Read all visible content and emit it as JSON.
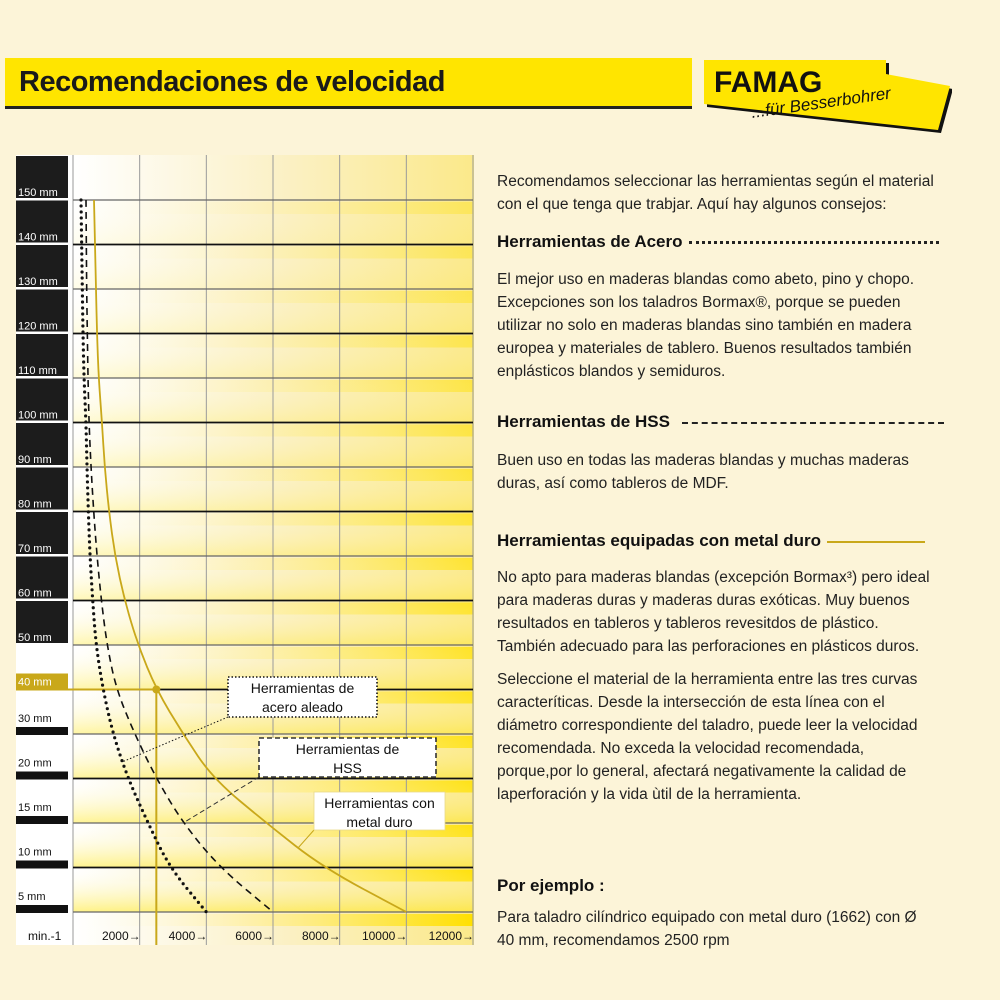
{
  "header": {
    "title": "Recomendaciones de velocidad"
  },
  "logo": {
    "brand": "FAMAG",
    "tagline": "...für Besserbohrer",
    "color": "#ffe500"
  },
  "intro": [
    "Recomendamos seleccionar las herramientas según el material",
    "con el que tenga que trabjar. Aquí hay algunos consejos:"
  ],
  "sections": [
    {
      "title": "Herramientas de Acero",
      "leader": "dotted",
      "lines": [
        "El mejor uso en maderas blandas como abeto, pino y chopo.",
        "Excepciones son los taladros Bormax®, porque se pueden",
        "utilizar no solo en maderas blandas sino también en madera",
        "europea y materiales de tablero. Buenos resultados también",
        "enplásticos blandos y semiduros."
      ]
    },
    {
      "title": "Herramientas de HSS",
      "leader": "dashed",
      "lines": [
        "Buen uso en todas las maderas blandas y muchas maderas",
        "duras, así como tableros de MDF."
      ]
    },
    {
      "title": "Herramientas equipadas con metal duro",
      "leader": "solid",
      "lines": [
        "No apto para maderas blandas (excepción Bormax³) pero ideal",
        "para maderas duras y maderas duras exóticas. Muy buenos",
        "resultados en tableros y tableros revesitdos de plástico.",
        "También adecuado para las perforaciones en plásticos duros."
      ]
    }
  ],
  "instructions": [
    "Seleccione el material de la herramienta entre las tres curvas",
    "caracteríticas. Desde la intersección de esta línea con el",
    "diámetro correspondiente del taladro, puede leer la velocidad",
    "recomendada. No exceda la velocidad recomendada,",
    "porque,por lo general, afectará negativamente la calidad de",
    "laperforación y la vida ùtil de la herramienta."
  ],
  "example": {
    "title": "Por ejemplo :",
    "lines": [
      "Para taladro cilíndrico equipado con metal duro (1662) con Ø",
      "40 mm, recomendamos 2500 rpm"
    ]
  },
  "chart_data": {
    "type": "line",
    "xlabel": "min.-1",
    "xlim": [
      0,
      12000
    ],
    "x_ticks": [
      "2000→",
      "4000→",
      "6000→",
      "8000→",
      "10000→",
      "12000→"
    ],
    "x_tick_values": [
      2000,
      4000,
      6000,
      8000,
      10000,
      12000
    ],
    "y_ticks": [
      "150 mm",
      "140 mm",
      "130 mm",
      "120 mm",
      "110 mm",
      "100 mm",
      "90 mm",
      "80 mm",
      "70 mm",
      "60 mm",
      "50 mm",
      "40 mm",
      "30 mm",
      "20 mm",
      "15 mm",
      "10 mm",
      "5 mm"
    ],
    "diameters_mm": [
      150,
      140,
      130,
      120,
      110,
      100,
      90,
      80,
      70,
      60,
      50,
      40,
      30,
      20,
      15,
      10,
      5
    ],
    "grid": true,
    "series": [
      {
        "name": "Herramientas de acero aleado",
        "style": "dotted",
        "color": "#111111",
        "rpm": [
          240,
          260,
          280,
          300,
          330,
          390,
          420,
          460,
          510,
          590,
          690,
          900,
          1200,
          1650,
          2250,
          2900,
          4000
        ]
      },
      {
        "name": "Herramientas de HSS",
        "style": "dashed",
        "color": "#111111",
        "rpm": [
          390,
          400,
          410,
          430,
          450,
          480,
          540,
          620,
          720,
          850,
          1020,
          1300,
          1850,
          2500,
          3300,
          4400,
          6000
        ]
      },
      {
        "name": "Herramientas con metal duro",
        "style": "solid",
        "color": "#c9a81a",
        "rpm": [
          630,
          660,
          690,
          720,
          770,
          870,
          950,
          1080,
          1260,
          1550,
          1950,
          2500,
          3300,
          4200,
          5800,
          7500,
          10000
        ]
      }
    ],
    "callouts": {
      "acero": [
        "Herramientas de",
        "acero aleado"
      ],
      "hss": [
        "Herramientas de",
        "HSS"
      ],
      "carbide": [
        "Herramientas con",
        "metal duro"
      ]
    },
    "example_point": {
      "diameter_mm": 40,
      "rpm": 2500
    },
    "highlight_color": "#c9a81a"
  }
}
